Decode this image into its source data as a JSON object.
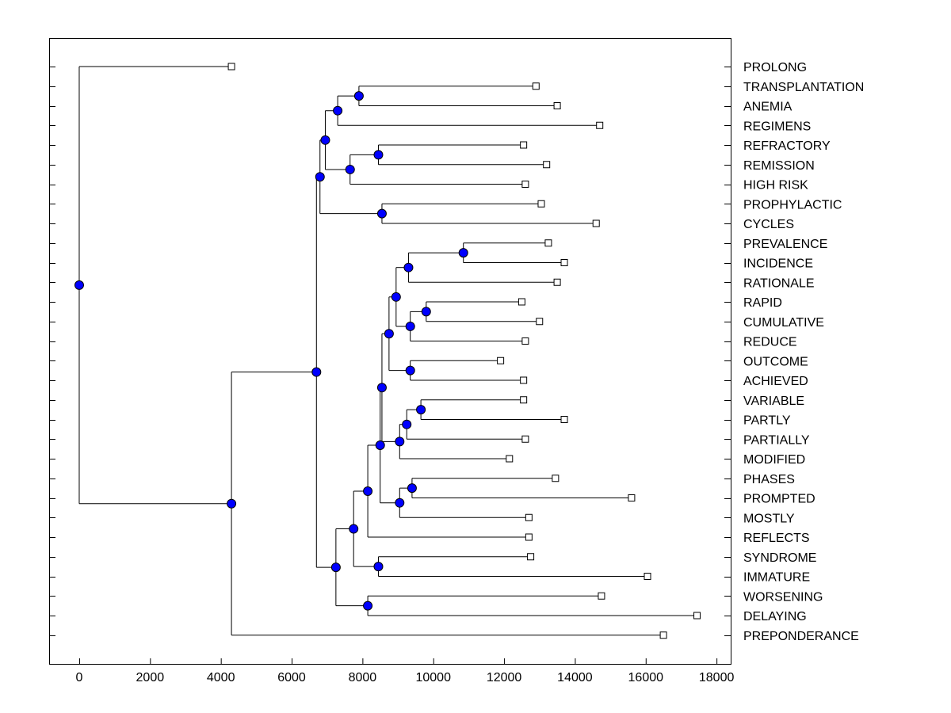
{
  "chart_data": {
    "type": "dendrogram",
    "orientation": "horizontal",
    "title": "",
    "xlabel": "",
    "ylabel": "",
    "xlim": [
      -850,
      18400
    ],
    "xticks": [
      0,
      2000,
      4000,
      6000,
      8000,
      10000,
      12000,
      14000,
      16000,
      18000
    ],
    "xtick_labels": [
      "0",
      "2000",
      "4000",
      "6000",
      "8000",
      "10000",
      "12000",
      "14000",
      "16000",
      "18000"
    ],
    "grid": false,
    "leaf_labels_side": "right",
    "marker_color": "#0000ff",
    "leaves": [
      {
        "id": "PROLONG",
        "label": "PROLONG",
        "value": 4300
      },
      {
        "id": "TRANSPLANTATION",
        "label": "TRANSPLANTATION",
        "value": 12900
      },
      {
        "id": "ANEMIA",
        "label": "ANEMIA",
        "value": 13500
      },
      {
        "id": "REGIMENS",
        "label": "REGIMENS",
        "value": 14700
      },
      {
        "id": "REFRACTORY",
        "label": "REFRACTORY",
        "value": 12550
      },
      {
        "id": "REMISSION",
        "label": "REMISSION",
        "value": 13200
      },
      {
        "id": "HIGH_RISK",
        "label": "HIGH RISK",
        "value": 12600
      },
      {
        "id": "PROPHYLACTIC",
        "label": "PROPHYLACTIC",
        "value": 13050
      },
      {
        "id": "CYCLES",
        "label": "CYCLES",
        "value": 14600
      },
      {
        "id": "PREVALENCE",
        "label": "PREVALENCE",
        "value": 13250
      },
      {
        "id": "INCIDENCE",
        "label": "INCIDENCE",
        "value": 13700
      },
      {
        "id": "RATIONALE",
        "label": "RATIONALE",
        "value": 13500
      },
      {
        "id": "RAPID",
        "label": "RAPID",
        "value": 12500
      },
      {
        "id": "CUMULATIVE",
        "label": "CUMULATIVE",
        "value": 13000
      },
      {
        "id": "REDUCE",
        "label": "REDUCE",
        "value": 12600
      },
      {
        "id": "OUTCOME",
        "label": "OUTCOME",
        "value": 11900
      },
      {
        "id": "ACHIEVED",
        "label": "ACHIEVED",
        "value": 12550
      },
      {
        "id": "VARIABLE",
        "label": "VARIABLE",
        "value": 12550
      },
      {
        "id": "PARTLY",
        "label": "PARTLY",
        "value": 13700
      },
      {
        "id": "PARTIALLY",
        "label": "PARTIALLY",
        "value": 12600
      },
      {
        "id": "MODIFIED",
        "label": "MODIFIED",
        "value": 12150
      },
      {
        "id": "PHASES",
        "label": "PHASES",
        "value": 13450
      },
      {
        "id": "PROMPTED",
        "label": "PROMPTED",
        "value": 15600
      },
      {
        "id": "MOSTLY",
        "label": "MOSTLY",
        "value": 12700
      },
      {
        "id": "REFLECTS",
        "label": "REFLECTS",
        "value": 12700
      },
      {
        "id": "SYNDROME",
        "label": "SYNDROME",
        "value": 12750
      },
      {
        "id": "IMMATURE",
        "label": "IMMATURE",
        "value": 16050
      },
      {
        "id": "WORSENING",
        "label": "WORSENING",
        "value": 14750
      },
      {
        "id": "DELAYING",
        "label": "DELAYING",
        "value": 17450
      },
      {
        "id": "PREPONDERANCE",
        "label": "PREPONDERANCE",
        "value": 16500
      }
    ],
    "nodes": [
      {
        "id": "n_trans_anem",
        "value": 7900,
        "children": [
          "TRANSPLANTATION",
          "ANEMIA"
        ]
      },
      {
        "id": "n_ta_regi",
        "value": 7300,
        "children": [
          "n_trans_anem",
          "REGIMENS"
        ]
      },
      {
        "id": "n_refr_remi",
        "value": 8450,
        "children": [
          "REFRACTORY",
          "REMISSION"
        ]
      },
      {
        "id": "n_rr_high",
        "value": 7650,
        "children": [
          "n_refr_remi",
          "HIGH_RISK"
        ]
      },
      {
        "id": "n_top_mid",
        "value": 6950,
        "children": [
          "n_ta_regi",
          "n_rr_high"
        ]
      },
      {
        "id": "n_prop_cycl",
        "value": 8550,
        "children": [
          "PROPHYLACTIC",
          "CYCLES"
        ]
      },
      {
        "id": "n_top_all",
        "value": 6800,
        "children": [
          "n_top_mid",
          "n_prop_cycl"
        ]
      },
      {
        "id": "n_prev_inci",
        "value": 10850,
        "children": [
          "PREVALENCE",
          "INCIDENCE"
        ]
      },
      {
        "id": "n_pi_rati",
        "value": 9300,
        "children": [
          "n_prev_inci",
          "RATIONALE"
        ]
      },
      {
        "id": "n_rapi_cumu",
        "value": 9800,
        "children": [
          "RAPID",
          "CUMULATIVE"
        ]
      },
      {
        "id": "n_rc_redu",
        "value": 9350,
        "children": [
          "n_rapi_cumu",
          "REDUCE"
        ]
      },
      {
        "id": "n_pir_rcr",
        "value": 8950,
        "children": [
          "n_pi_rati",
          "n_rc_redu"
        ]
      },
      {
        "id": "n_outc_achi",
        "value": 9350,
        "children": [
          "OUTCOME",
          "ACHIEVED"
        ]
      },
      {
        "id": "n_grp_oa",
        "value": 8750,
        "children": [
          "n_pir_rcr",
          "n_outc_achi"
        ]
      },
      {
        "id": "n_vari_part",
        "value": 9650,
        "children": [
          "VARIABLE",
          "PARTLY"
        ]
      },
      {
        "id": "n_vp_pall",
        "value": 9250,
        "children": [
          "n_vari_part",
          "PARTIALLY"
        ]
      },
      {
        "id": "n_vpp_modi",
        "value": 9050,
        "children": [
          "n_vp_pall",
          "MODIFIED"
        ]
      },
      {
        "id": "n_mid_grp",
        "value": 8550,
        "children": [
          "n_grp_oa",
          "n_vpp_modi"
        ]
      },
      {
        "id": "n_phas_prom",
        "value": 9400,
        "children": [
          "PHASES",
          "PROMPTED"
        ]
      },
      {
        "id": "n_pp_most",
        "value": 9050,
        "children": [
          "n_phas_prom",
          "MOSTLY"
        ]
      },
      {
        "id": "n_mid_ppm",
        "value": 8500,
        "children": [
          "n_mid_grp",
          "n_pp_most"
        ]
      },
      {
        "id": "n_mp_refl",
        "value": 8150,
        "children": [
          "n_mid_ppm",
          "REFLECTS"
        ]
      },
      {
        "id": "n_synd_imma",
        "value": 8450,
        "children": [
          "SYNDROME",
          "IMMATURE"
        ]
      },
      {
        "id": "n_mpr_si",
        "value": 7750,
        "children": [
          "n_mp_refl",
          "n_synd_imma"
        ]
      },
      {
        "id": "n_wors_dela",
        "value": 8150,
        "children": [
          "WORSENING",
          "DELAYING"
        ]
      },
      {
        "id": "n_low_mid",
        "value": 7250,
        "children": [
          "n_mpr_si",
          "n_wors_dela"
        ]
      },
      {
        "id": "n_main",
        "value": 6700,
        "children": [
          "n_top_all",
          "n_low_mid"
        ]
      },
      {
        "id": "n_main_prep",
        "value": 4300,
        "children": [
          "n_main",
          "PREPONDERANCE"
        ]
      },
      {
        "id": "n_root",
        "value": 0,
        "children": [
          "PROLONG",
          "n_main_prep"
        ]
      }
    ],
    "root": "n_root"
  }
}
